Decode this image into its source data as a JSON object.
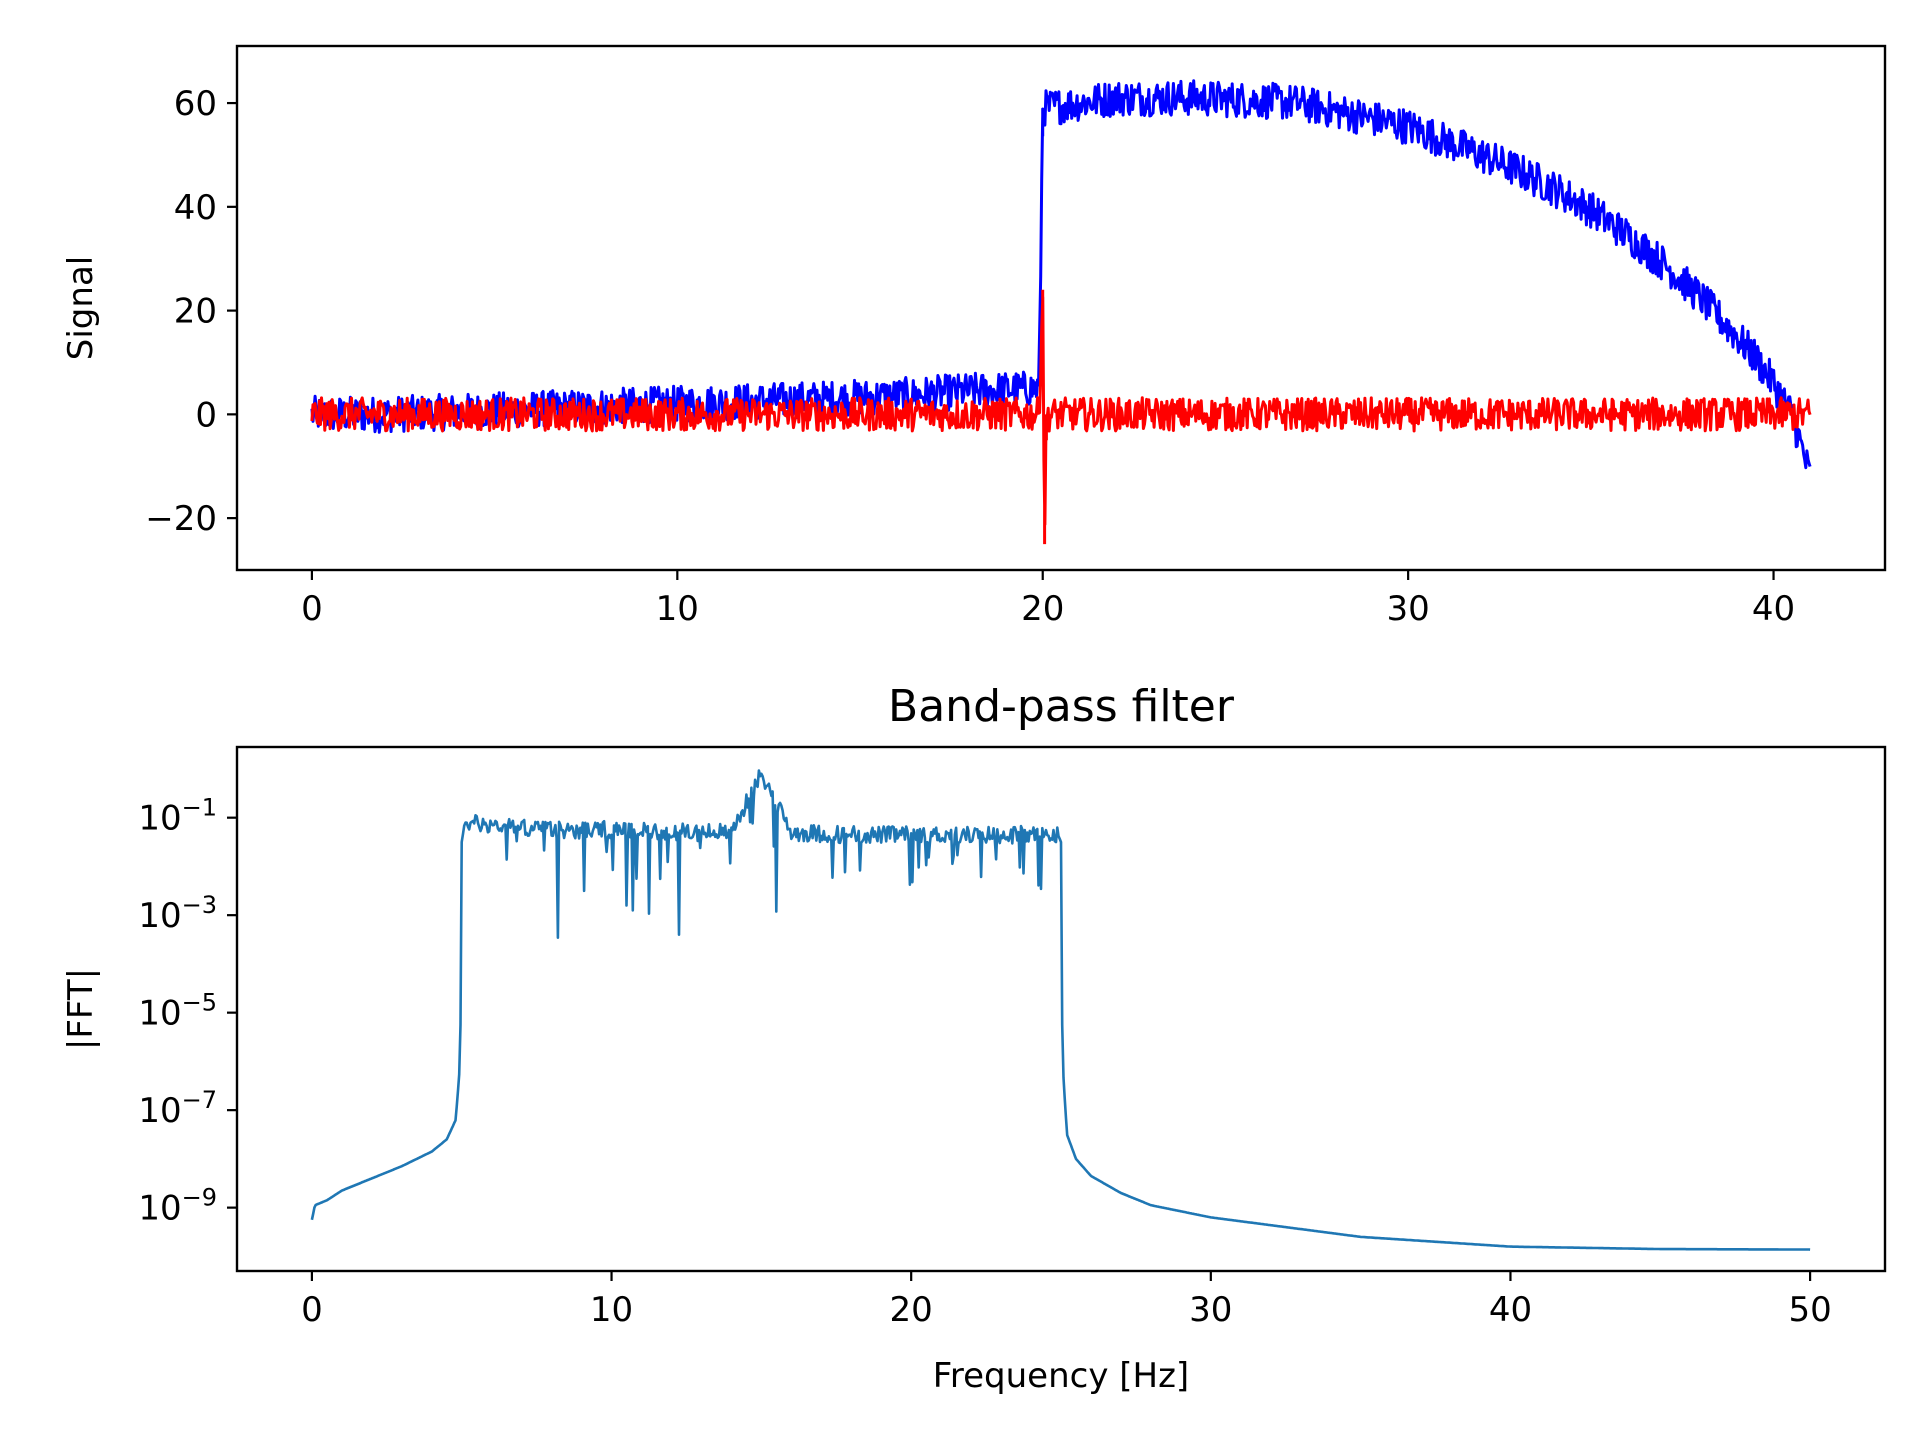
{
  "chart_data": [
    {
      "type": "line",
      "title": "",
      "xlabel": "",
      "ylabel": "Signal",
      "xlim": [
        -2.05,
        43.05
      ],
      "ylim": [
        -30,
        71
      ],
      "x_ticks": [
        0,
        10,
        20,
        30,
        40
      ],
      "x_tick_labels": [
        "0",
        "10",
        "20",
        "30",
        "40"
      ],
      "y_ticks": [
        -20,
        0,
        20,
        40,
        60
      ],
      "y_tick_labels": [
        "−20",
        "0",
        "20",
        "40",
        "60"
      ],
      "grid": false,
      "legend": "none",
      "series": [
        {
          "color": "#0000ff",
          "x_range": [
            0,
            41
          ],
          "description_points": {
            "x": [
              0,
              2,
              4,
              6,
              8,
              10,
              12,
              14,
              16,
              18,
              19.9,
              20,
              21,
              22,
              24,
              26,
              27,
              28,
              30,
              32,
              33,
              34,
              35,
              36,
              37,
              38,
              39,
              39.5,
              40,
              40.5,
              41
            ],
            "y": [
              0,
              0,
              0.5,
              1,
              1.5,
              2,
              2.5,
              3,
              3.5,
              4.5,
              5,
              59,
              60,
              61,
              61,
              60.5,
              60,
              58.5,
              55.5,
              50,
              47,
              43.5,
              39.5,
              34.5,
              29,
              22.5,
              15,
              11,
              6,
              0,
              -12
            ]
          },
          "noise_amplitude": 3.5
        },
        {
          "color": "#ff0000",
          "x_range": [
            0,
            41
          ],
          "description_points": {
            "x": [
              0,
              19.9,
              20,
              20.05,
              20.1,
              41
            ],
            "y": [
              0,
              0,
              24,
              -25,
              0,
              0
            ]
          },
          "noise_amplitude": 3.2
        }
      ]
    },
    {
      "type": "line",
      "title": "Band-pass filter",
      "xlabel": "Frequency [Hz]",
      "ylabel": "|FFT|",
      "xlim": [
        -2.5,
        52.5
      ],
      "y_scale": "log",
      "ylim_log10": [
        -10.3,
        0.45
      ],
      "x_ticks": [
        0,
        10,
        20,
        30,
        40,
        50
      ],
      "x_tick_labels": [
        "0",
        "10",
        "20",
        "30",
        "40",
        "50"
      ],
      "y_ticks_log10": [
        -1,
        -3,
        -5,
        -7,
        -9
      ],
      "y_tick_bases": [
        "10",
        "10",
        "10",
        "10",
        "10"
      ],
      "y_tick_exponents": [
        "−1",
        "−3",
        "−5",
        "−7",
        "−9"
      ],
      "grid": false,
      "legend": "none",
      "series": [
        {
          "color": "#1f77b4",
          "log10_y_points": {
            "x": [
              0,
              0.1,
              0.5,
              1,
              2,
              3,
              4,
              4.5,
              4.8,
              4.95,
              5,
              5.1,
              6,
              8,
              10,
              12,
              14,
              15,
              16,
              18,
              20,
              22,
              24,
              24.9,
              25,
              25.05,
              25.2,
              25.5,
              26,
              27,
              28,
              30,
              35,
              40,
              45,
              50
            ],
            "y": [
              -9.25,
              -8.95,
              -8.85,
              -8.65,
              -8.4,
              -8.15,
              -7.85,
              -7.6,
              -7.2,
              -6.0,
              -1.5,
              -1.1,
              -1.15,
              -1.25,
              -1.25,
              -1.3,
              -1.3,
              -0.1,
              -1.3,
              -1.35,
              -1.35,
              -1.35,
              -1.35,
              -1.35,
              -1.5,
              -6.0,
              -7.5,
              -8.0,
              -8.35,
              -8.7,
              -8.95,
              -9.2,
              -9.6,
              -9.8,
              -9.85,
              -9.86
            ]
          },
          "passband_noise": "irregular dips down to about 1e-3"
        }
      ]
    }
  ]
}
